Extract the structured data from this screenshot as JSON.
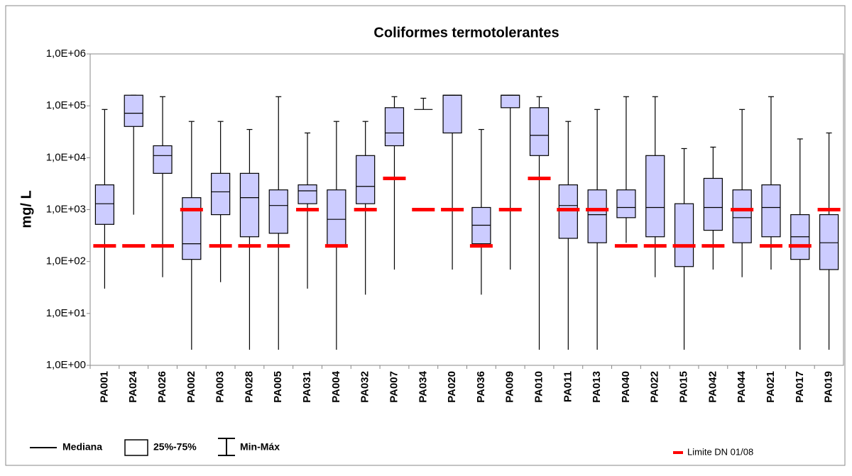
{
  "chart_data": {
    "type": "box",
    "title": "Coliformes termotolerantes",
    "y_label": "mg/ L",
    "log_scale": true,
    "ylim": [
      1,
      1000000
    ],
    "yticks": [
      {
        "value": 1,
        "label": "1,0E+00"
      },
      {
        "value": 10,
        "label": "1,0E+01"
      },
      {
        "value": 100,
        "label": "1,0E+02"
      },
      {
        "value": 1000,
        "label": "1,0E+03"
      },
      {
        "value": 10000,
        "label": "1,0E+04"
      },
      {
        "value": 100000,
        "label": "1,0E+05"
      },
      {
        "value": 1000000,
        "label": "1,0E+06"
      }
    ],
    "categories": [
      "PA001",
      "PA024",
      "PA026",
      "PA002",
      "PA003",
      "PA028",
      "PA005",
      "PA031",
      "PA004",
      "PA032",
      "PA007",
      "PA034",
      "PA020",
      "PA036",
      "PA009",
      "PA010",
      "PA011",
      "PA013",
      "PA040",
      "PA022",
      "PA015",
      "PA042",
      "PA044",
      "PA021",
      "PA017",
      "PA019"
    ],
    "box_color": "#ccccff",
    "min": [
      30,
      800,
      50,
      2,
      40,
      2,
      2,
      30,
      2,
      23,
      70,
      85000,
      70,
      23,
      70,
      2,
      2,
      2,
      230,
      50,
      2,
      70,
      50,
      70,
      2,
      2
    ],
    "q1": [
      520,
      40000,
      5000,
      110,
      800,
      300,
      350,
      1300,
      200,
      1300,
      17000,
      85000,
      30000,
      220,
      92000,
      11000,
      280,
      230,
      700,
      300,
      80,
      400,
      230,
      300,
      110,
      70
    ],
    "median": [
      1300,
      72000,
      11000,
      220,
      2200,
      1700,
      1200,
      2300,
      650,
      2800,
      30000,
      85000,
      160000,
      500,
      160000,
      27000,
      1200,
      800,
      1100,
      1100,
      200,
      1100,
      700,
      1100,
      300,
      230
    ],
    "q3": [
      3000,
      160000,
      17000,
      1700,
      5000,
      5000,
      2400,
      3000,
      2400,
      11000,
      92000,
      85000,
      160000,
      1100,
      160000,
      92000,
      3000,
      2400,
      2400,
      11000,
      1300,
      4000,
      2400,
      3000,
      800,
      800
    ],
    "max": [
      85000,
      160000,
      150000,
      50000,
      50000,
      35000,
      150000,
      30000,
      50000,
      50000,
      150000,
      140000,
      160000,
      35000,
      160000,
      150000,
      50000,
      85000,
      150000,
      150000,
      15000,
      16000,
      85000,
      150000,
      23000,
      30000
    ],
    "series": [
      {
        "name": "Limite DN 01/08",
        "color": "#ff0000",
        "values": [
          200,
          200,
          200,
          1000,
          200,
          200,
          200,
          1000,
          200,
          1000,
          4000,
          1000,
          1000,
          200,
          1000,
          4000,
          1000,
          1000,
          200,
          200,
          200,
          200,
          1000,
          200,
          200,
          1000
        ]
      }
    ],
    "legend_items": [
      "Mediana",
      "25%-75%",
      "Min-Máx"
    ]
  }
}
